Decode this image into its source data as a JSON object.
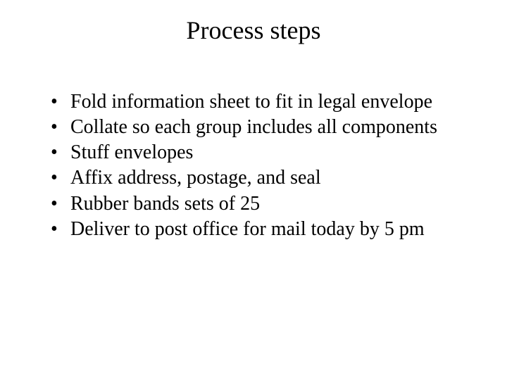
{
  "slide": {
    "title": "Process steps",
    "bullets": [
      "Fold information sheet to fit in legal envelope",
      "Collate so each group includes all components",
      "Stuff envelopes",
      "Affix address, postage, and seal",
      "Rubber bands sets of 25",
      "Deliver to post office for mail today by 5 pm"
    ],
    "colors": {
      "background": "#ffffff",
      "text": "#000000"
    },
    "typography": {
      "title_fontsize": 36,
      "body_fontsize": 28,
      "font_family": "Times New Roman"
    }
  }
}
